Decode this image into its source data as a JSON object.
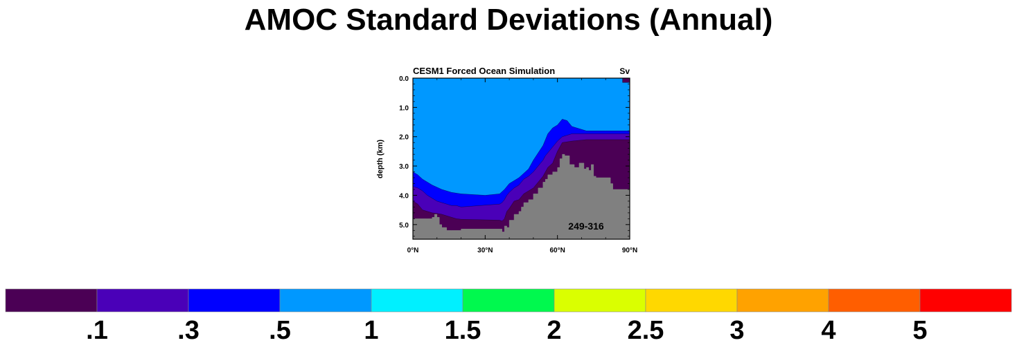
{
  "title": "AMOC Standard Deviations (Annual)",
  "chart_data": {
    "type": "heatmap",
    "panel_title": "CESM1 Forced Ocean Simulation",
    "units": "Sv",
    "period": "249-316",
    "xlabel": "",
    "ylabel": "depth (km)",
    "x_ticks": [
      "0°N",
      "30°N",
      "60°N",
      "90°N"
    ],
    "x_tick_values": [
      0,
      30,
      60,
      90
    ],
    "y_ticks": [
      "0.0",
      "1.0",
      "2.0",
      "3.0",
      "4.0",
      "5.0"
    ],
    "y_tick_values": [
      0,
      1,
      2,
      3,
      4,
      5
    ],
    "xlim": [
      0,
      90
    ],
    "ylim": [
      5.5,
      0
    ],
    "land_color": "#808080",
    "levels": [
      ".1",
      ".3",
      ".5",
      "1",
      "1.5",
      "2",
      "2.5",
      "3",
      "4",
      "5"
    ],
    "level_colors": [
      "#4b0055",
      "#4a00b8",
      "#0000ff",
      "#0098ff",
      "#00f0ff",
      "#00f94e",
      "#daff00",
      "#ffd800",
      "#ffa200",
      "#ff5e00",
      "#ff0000"
    ],
    "bathymetry": {
      "lat": [
        0,
        6,
        8,
        9,
        10,
        11,
        12,
        14,
        16,
        20,
        36,
        37,
        38,
        39,
        40,
        42,
        44,
        45,
        46,
        48,
        50,
        52,
        54,
        55,
        56,
        58,
        60,
        61,
        62,
        63,
        65,
        67,
        69,
        71,
        72,
        73,
        74,
        75,
        76,
        79,
        82,
        83,
        90
      ],
      "depth": [
        4.8,
        4.8,
        4.75,
        4.65,
        4.75,
        5.0,
        5.1,
        5.2,
        5.2,
        5.15,
        5.15,
        5.25,
        5.05,
        5.1,
        4.85,
        4.65,
        4.55,
        4.4,
        4.25,
        4.15,
        3.95,
        3.75,
        3.55,
        3.45,
        3.3,
        3.2,
        3.05,
        2.75,
        2.6,
        2.65,
        2.95,
        3.05,
        2.9,
        3.1,
        3.05,
        3.15,
        2.95,
        3.35,
        3.4,
        3.4,
        3.6,
        3.8,
        3.8
      ]
    },
    "std_regions": [
      {
        "level": 0,
        "lat": [
          0,
          2,
          4,
          6,
          8,
          10,
          12,
          14,
          16,
          18,
          20,
          36,
          37,
          38,
          39,
          40,
          42,
          44,
          45,
          46,
          48,
          50,
          52,
          54,
          55,
          56,
          58,
          60,
          62,
          66,
          72,
          80,
          90
        ],
        "depth": [
          4.2,
          4.3,
          4.5,
          4.55,
          4.6,
          4.62,
          4.65,
          4.7,
          4.75,
          4.8,
          4.82,
          4.85,
          4.88,
          4.8,
          4.55,
          4.45,
          4.2,
          4.15,
          4.05,
          3.95,
          3.85,
          3.75,
          3.55,
          3.35,
          3.2,
          3.05,
          2.9,
          2.5,
          2.2,
          2.15,
          2.1,
          2.1,
          2.1
        ]
      },
      {
        "level": 0,
        "lat": [
          87,
          90
        ],
        "depth": [
          0.15,
          0.15
        ],
        "cap": true
      },
      {
        "level": 1,
        "lat": [
          0,
          2,
          4,
          6,
          8,
          10,
          12,
          14,
          16,
          18,
          20,
          36,
          37,
          38,
          39,
          40,
          42,
          44,
          45,
          46,
          48,
          50,
          52,
          54,
          55,
          56,
          58,
          60,
          62,
          64,
          66,
          72,
          80,
          90
        ],
        "depth": [
          3.7,
          3.75,
          3.85,
          4.0,
          4.1,
          4.2,
          4.25,
          4.3,
          4.35,
          4.35,
          4.4,
          4.3,
          4.25,
          4.15,
          4.0,
          3.9,
          3.75,
          3.65,
          3.55,
          3.45,
          3.35,
          3.2,
          3.0,
          2.8,
          2.65,
          2.55,
          2.35,
          2.15,
          2.0,
          1.95,
          1.9,
          1.9,
          1.9,
          1.9
        ]
      },
      {
        "level": 2,
        "lat": [
          0,
          2,
          4,
          6,
          8,
          12,
          16,
          20,
          30,
          36,
          38,
          40,
          44,
          48,
          50,
          52,
          54,
          55,
          56,
          58,
          60,
          61,
          62,
          64,
          66,
          72,
          80,
          90
        ],
        "depth": [
          3.2,
          3.3,
          3.45,
          3.55,
          3.65,
          3.8,
          3.9,
          3.95,
          4.0,
          3.95,
          3.8,
          3.6,
          3.4,
          3.1,
          2.8,
          2.55,
          2.3,
          2.1,
          1.9,
          1.7,
          1.6,
          1.5,
          1.4,
          1.45,
          1.65,
          1.8,
          1.8,
          1.8
        ]
      }
    ]
  }
}
